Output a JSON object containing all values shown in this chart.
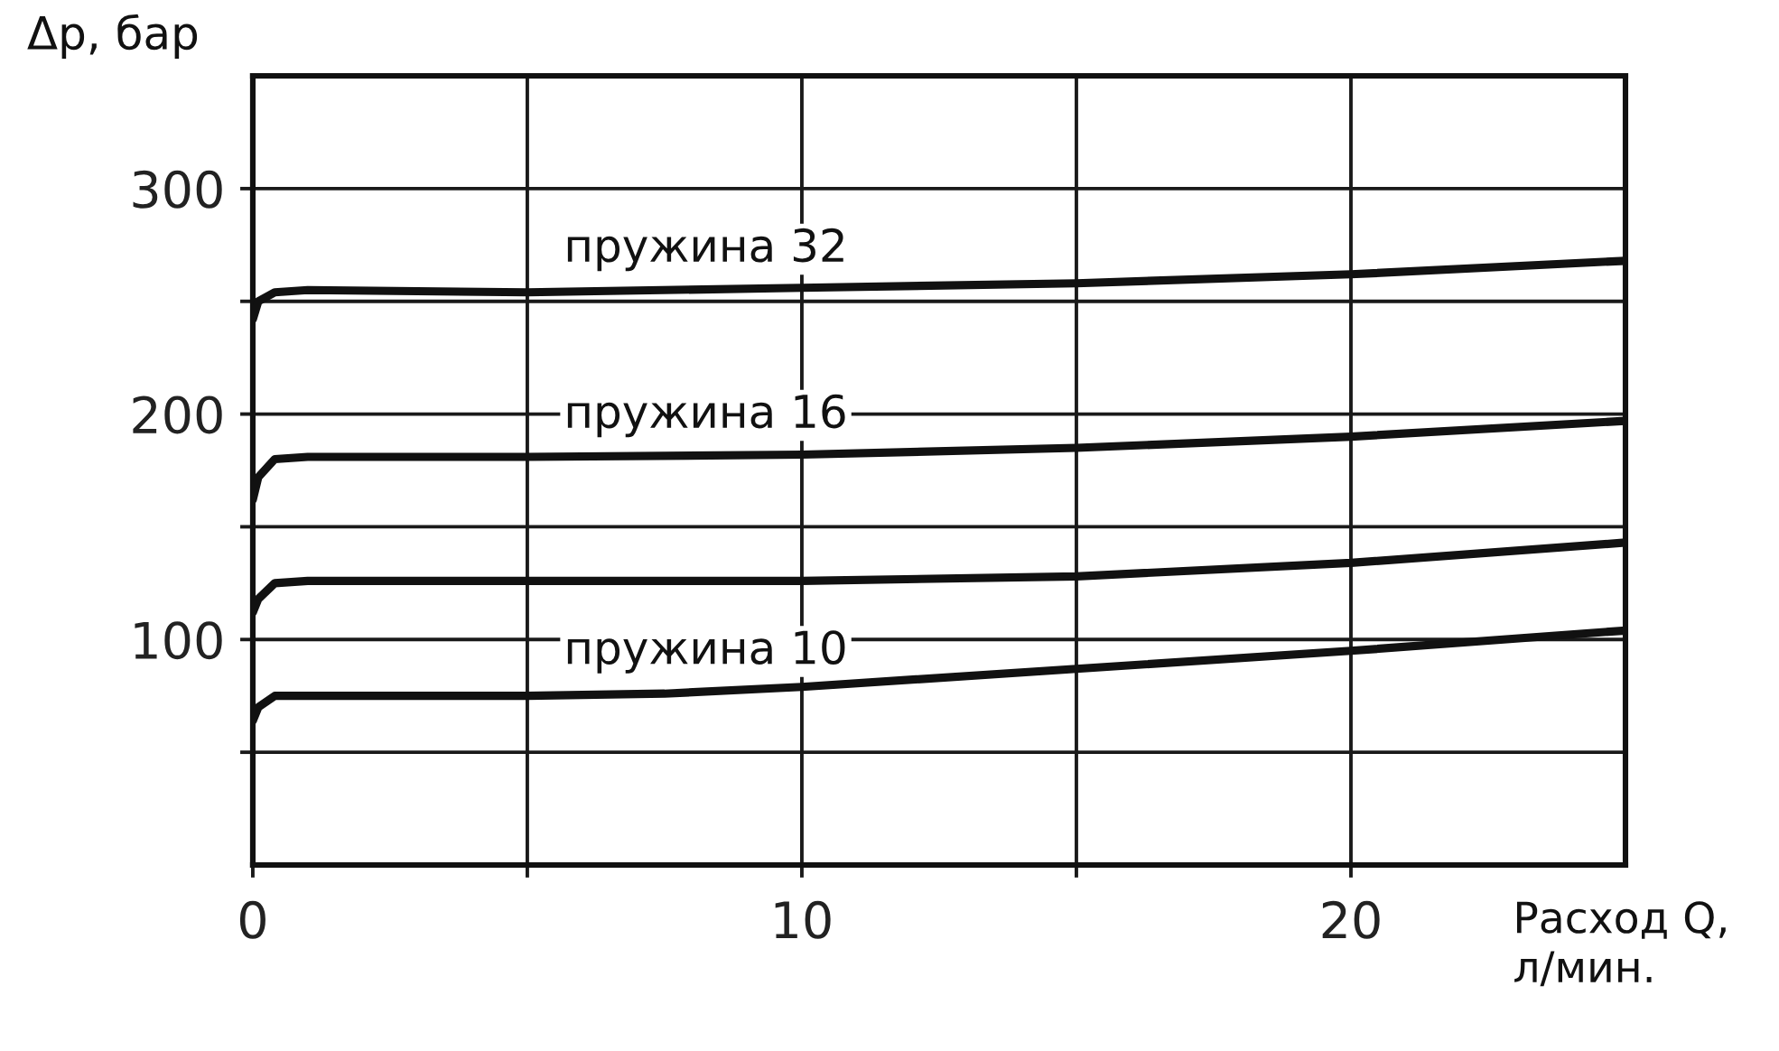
{
  "chart_data": {
    "type": "line",
    "xlabel": "Расход Q,\nл/мин.",
    "ylabel": "Δp, бар",
    "xlim": [
      0,
      25
    ],
    "ylim": [
      0,
      350
    ],
    "xticks": [
      0,
      {
        "value": 5,
        "label": null
      },
      10,
      {
        "value": 15,
        "label": null
      },
      20
    ],
    "yticks": [
      {
        "value": 50,
        "label": null
      },
      100,
      {
        "value": 150,
        "label": null
      },
      200,
      {
        "value": 250,
        "label": null
      },
      300
    ],
    "grid": true,
    "line_style": "solid",
    "series": [
      {
        "name": "пружина 32",
        "color": "#111111",
        "x": [
          0,
          0.1,
          0.4,
          1,
          5,
          10,
          15,
          20,
          25
        ],
        "values": [
          242,
          250,
          254,
          255,
          254,
          256,
          258,
          262,
          268
        ]
      },
      {
        "name": "пружина 16",
        "color": "#111111",
        "x": [
          0,
          0.1,
          0.4,
          1,
          5,
          10,
          15,
          20,
          25
        ],
        "values": [
          162,
          172,
          180,
          181,
          181,
          182,
          185,
          190,
          197
        ]
      },
      {
        "color": "#111111",
        "x": [
          0,
          0.1,
          0.4,
          1,
          5,
          10,
          15,
          20,
          25
        ],
        "values": [
          112,
          118,
          125,
          126,
          126,
          126,
          128,
          134,
          143
        ]
      },
      {
        "name": "пружина 10",
        "color": "#111111",
        "x": [
          0,
          0.1,
          0.4,
          1,
          5,
          7.5,
          10,
          15,
          20,
          25
        ],
        "values": [
          64,
          70,
          75,
          75,
          75,
          76,
          79,
          87,
          95,
          104
        ]
      }
    ]
  }
}
